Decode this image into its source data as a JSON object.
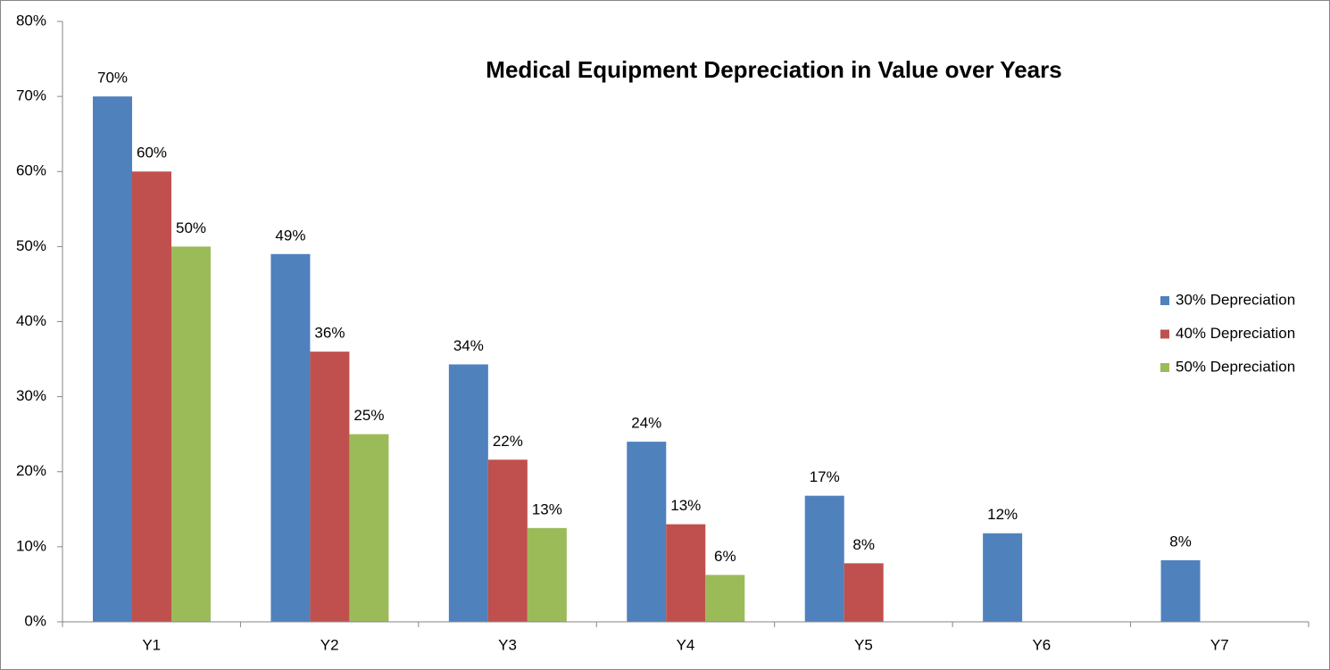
{
  "chart_data": {
    "type": "bar",
    "title": "Medical Equipment Depreciation in Value over Years",
    "categories": [
      "Y1",
      "Y2",
      "Y3",
      "Y4",
      "Y5",
      "Y6",
      "Y7"
    ],
    "series": [
      {
        "name": "30% Depreciation",
        "color": "#4f81bd",
        "values": [
          70,
          49,
          34.3,
          24,
          16.8,
          11.8,
          8.2
        ],
        "value_labels": [
          "70%",
          "49%",
          "34%",
          "24%",
          "17%",
          "12%",
          "8%"
        ]
      },
      {
        "name": "40% Depreciation",
        "color": "#c0504d",
        "values": [
          60,
          36,
          21.6,
          13,
          7.8,
          null,
          null
        ],
        "value_labels": [
          "60%",
          "36%",
          "22%",
          "13%",
          "8%",
          null,
          null
        ]
      },
      {
        "name": "50% Depreciation",
        "color": "#9bbb59",
        "values": [
          50,
          25,
          12.5,
          6.25,
          null,
          null,
          null
        ],
        "value_labels": [
          "50%",
          "25%",
          "13%",
          "6%",
          null,
          null,
          null
        ]
      }
    ],
    "ylim": [
      0,
      80
    ],
    "yticks": [
      {
        "value": 0,
        "label": "0%"
      },
      {
        "value": 10,
        "label": "10%"
      },
      {
        "value": 20,
        "label": "20%"
      },
      {
        "value": 30,
        "label": "30%"
      },
      {
        "value": 40,
        "label": "40%"
      },
      {
        "value": 50,
        "label": "50%"
      },
      {
        "value": 60,
        "label": "60%"
      },
      {
        "value": 70,
        "label": "70%"
      },
      {
        "value": 80,
        "label": "80%"
      }
    ],
    "grid": false,
    "legend": "right"
  }
}
